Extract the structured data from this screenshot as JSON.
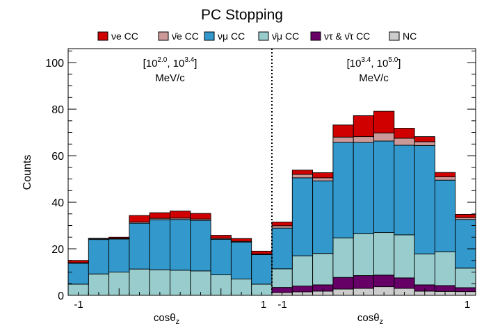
{
  "chart_data": {
    "type": "bar",
    "stacked": true,
    "title": "PC  Stopping",
    "ylabel": "Counts",
    "ylim": [
      0,
      106
    ],
    "yticks": [
      "0",
      "20",
      "40",
      "60",
      "80",
      "100"
    ],
    "legend_position": "top",
    "legend": [
      {
        "key": "nue",
        "name": "νe CC",
        "color": "#d00000"
      },
      {
        "key": "nuebar",
        "name": "ν̄e CC",
        "color": "#cc9999"
      },
      {
        "key": "numu",
        "name": "νμ CC",
        "color": "#3399cc"
      },
      {
        "key": "numubar",
        "name": "ν̄μ CC",
        "color": "#99cccc"
      },
      {
        "key": "nutau",
        "name": "ντ & ν̄τ CC",
        "color": "#660066"
      },
      {
        "key": "nc",
        "name": "NC",
        "color": "#cccccc"
      }
    ],
    "panels": [
      {
        "label_line1": "[10^2.0, 10^3.4]",
        "label_line2": "MeV/c",
        "xlabel": "cosθz",
        "xticks": [
          "-1",
          "1"
        ],
        "bin_edges": [
          -1.0,
          -0.8,
          -0.6,
          -0.4,
          -0.2,
          0.0,
          0.2,
          0.4,
          0.6,
          0.8,
          1.0
        ],
        "series": [
          {
            "key": "nc",
            "values": [
              0.0,
              0.0,
              0.0,
              0.0,
              0.0,
              0.0,
              0.0,
              0.0,
              0.0,
              0.0
            ]
          },
          {
            "key": "nutau",
            "values": [
              0.0,
              0.0,
              0.0,
              0.0,
              0.0,
              0.0,
              0.0,
              0.0,
              0.0,
              0.0
            ]
          },
          {
            "key": "numubar",
            "values": [
              4.8,
              9.2,
              10.0,
              11.3,
              11.0,
              10.8,
              10.5,
              8.8,
              7.0,
              4.8
            ]
          },
          {
            "key": "numu",
            "values": [
              9.0,
              14.8,
              14.2,
              19.7,
              21.5,
              21.8,
              21.7,
              15.3,
              15.8,
              12.7
            ]
          },
          {
            "key": "nuebar",
            "values": [
              0.2,
              0.3,
              0.3,
              0.5,
              0.6,
              0.6,
              0.6,
              0.4,
              0.4,
              0.3
            ]
          },
          {
            "key": "nue",
            "values": [
              1.0,
              0.2,
              0.5,
              2.8,
              2.4,
              3.0,
              2.4,
              1.3,
              1.2,
              1.2
            ]
          }
        ]
      },
      {
        "label_line1": "[10^3.4, 10^5.0]",
        "label_line2": "MeV/c",
        "xlabel": "cosθz",
        "xticks": [
          "-1",
          "1"
        ],
        "bin_edges": [
          -1.0,
          -0.8,
          -0.6,
          -0.4,
          -0.2,
          0.0,
          0.2,
          0.4,
          0.6,
          0.8,
          1.0
        ],
        "series": [
          {
            "key": "nc",
            "values": [
              1.2,
              1.5,
              1.8,
              2.7,
              3.0,
              3.7,
              3.0,
              1.8,
              1.7,
              1.6
            ]
          },
          {
            "key": "nutau",
            "values": [
              2.2,
              2.5,
              2.7,
              5.0,
              5.5,
              5.0,
              4.5,
              2.7,
              2.5,
              1.7
            ]
          },
          {
            "key": "numubar",
            "values": [
              8.0,
              13.0,
              13.5,
              17.0,
              18.0,
              18.3,
              18.5,
              13.3,
              14.5,
              8.4
            ]
          },
          {
            "key": "numu",
            "values": [
              17.5,
              33.5,
              31.2,
              41.0,
              39.2,
              39.3,
              38.5,
              46.6,
              30.8,
              20.9
            ]
          },
          {
            "key": "nuebar",
            "values": [
              1.0,
              1.5,
              1.3,
              2.3,
              2.5,
              3.5,
              3.0,
              1.6,
              1.4,
              0.8
            ]
          },
          {
            "key": "nue",
            "values": [
              1.6,
              1.8,
              2.2,
              5.2,
              9.0,
              9.3,
              4.3,
              2.2,
              1.9,
              1.4
            ]
          }
        ]
      }
    ]
  }
}
